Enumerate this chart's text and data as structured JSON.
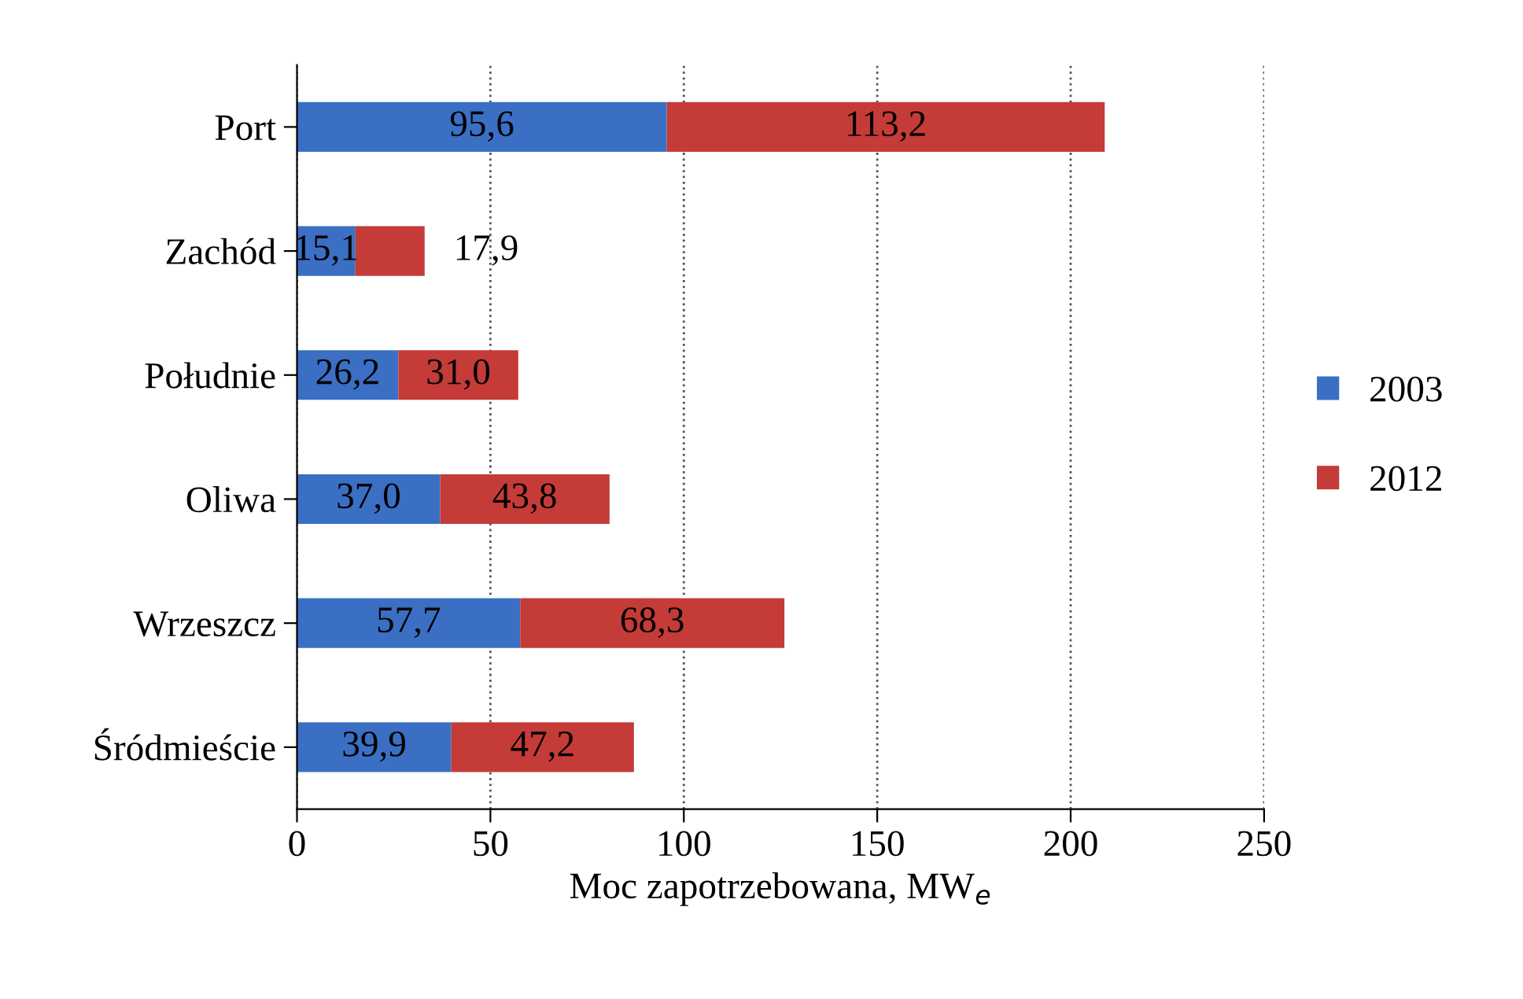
{
  "chart_data": {
    "type": "bar",
    "orientation": "horizontal",
    "stacked": true,
    "categories": [
      "Port",
      "Zachód",
      "Południe",
      "Oliwa",
      "Wrzeszcz",
      "Śródmieście"
    ],
    "series": [
      {
        "name": "2003",
        "color": "#3a6fc4",
        "values": [
          95.6,
          15.1,
          26.2,
          37.0,
          57.7,
          39.9
        ],
        "value_labels": [
          "95,6",
          "15,1",
          "26,2",
          "37,0",
          "57,7",
          "39,9"
        ]
      },
      {
        "name": "2012",
        "color": "#c43b38",
        "values": [
          113.2,
          17.9,
          31.0,
          43.8,
          68.3,
          47.2
        ],
        "value_labels": [
          "113,2",
          "17,9",
          "31,0",
          "43,8",
          "68,3",
          "47,2"
        ]
      }
    ],
    "xlabel": "Moc zapotrzebowana, MW$_{e}$",
    "xlim": [
      0,
      250
    ],
    "xticks": [
      0,
      50,
      100,
      150,
      200,
      250
    ],
    "grid": "x",
    "legend": "right"
  }
}
